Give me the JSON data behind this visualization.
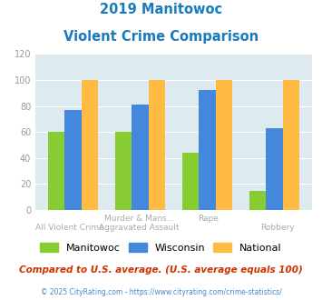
{
  "title_line1": "2019 Manitowoc",
  "title_line2": "Violent Crime Comparison",
  "title_color": "#1a7abf",
  "manitowoc": [
    60,
    60,
    44,
    15
  ],
  "wisconsin": [
    77,
    81,
    92,
    63
  ],
  "national": [
    100,
    100,
    100,
    100
  ],
  "manitowoc_color": "#88cc33",
  "wisconsin_color": "#4488dd",
  "national_color": "#ffbb44",
  "ylim": [
    0,
    120
  ],
  "yticks": [
    0,
    20,
    40,
    60,
    80,
    100,
    120
  ],
  "legend_labels": [
    "Manitowoc",
    "Wisconsin",
    "National"
  ],
  "footnote1": "Compared to U.S. average. (U.S. average equals 100)",
  "footnote2": "© 2025 CityRating.com - https://www.cityrating.com/crime-statistics/",
  "footnote1_color": "#cc3300",
  "footnote2_color": "#4488cc",
  "bg_color": "#ddeaee",
  "bar_width": 0.25,
  "x_line1": [
    "",
    "Murder & Mans...",
    "Rape",
    ""
  ],
  "x_line2": [
    "All Violent Crime",
    "Aggravated Assault",
    "",
    "Robbery"
  ]
}
